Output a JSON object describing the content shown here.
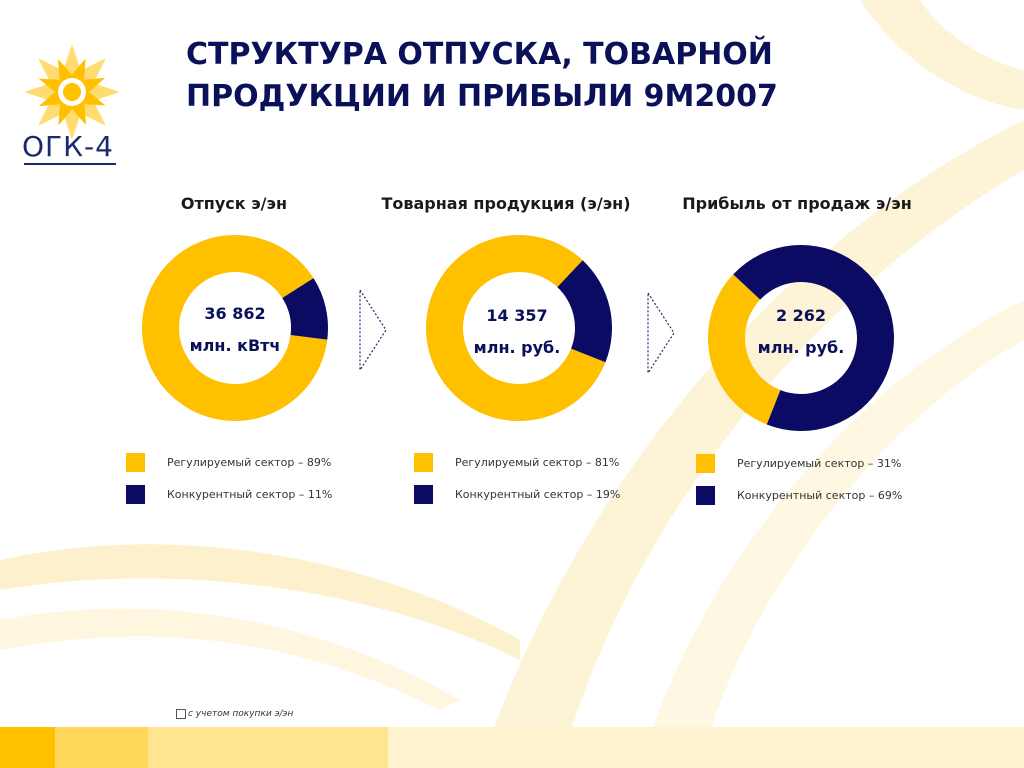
{
  "logo": {
    "text": "ОГК-4"
  },
  "title_line1": "СТРУКТУРА ОТПУСКА, ТОВАРНОЙ",
  "title_line2": "ПРОДУКЦИИ И ПРИБЫЛИ 9М2007",
  "colors": {
    "regulated": "#ffc000",
    "competitive": "#0b0b63",
    "title": "#0b1158"
  },
  "chart_data": [
    {
      "type": "pie",
      "title": "Отпуск э/эн",
      "center_value": "36 862",
      "center_unit": "млн. кВтч",
      "categories": [
        "Регулируемый сектор",
        "Конкурентный сектор"
      ],
      "values": [
        89,
        11
      ],
      "legend": [
        "Регулируемый сектор – 89%",
        "Конкурентный сектор – 11%"
      ]
    },
    {
      "type": "pie",
      "title": "Товарная продукция (э/эн)",
      "center_value": "14 357",
      "center_unit": "млн. руб.",
      "categories": [
        "Регулируемый сектор",
        "Конкурентный сектор"
      ],
      "values": [
        81,
        19
      ],
      "legend": [
        "Регулируемый сектор – 81%",
        "Конкурентный сектор – 19%"
      ]
    },
    {
      "type": "pie",
      "title": "Прибыль от продаж э/эн",
      "center_value": "2 262",
      "center_unit": "млн. руб.",
      "categories": [
        "Регулируемый сектор",
        "Конкурентный сектор"
      ],
      "values": [
        31,
        69
      ],
      "legend": [
        "Регулируемый сектор – 31%",
        "Конкурентный сектор – 69%"
      ]
    }
  ],
  "footnote": "с учетом покупки э/эн"
}
